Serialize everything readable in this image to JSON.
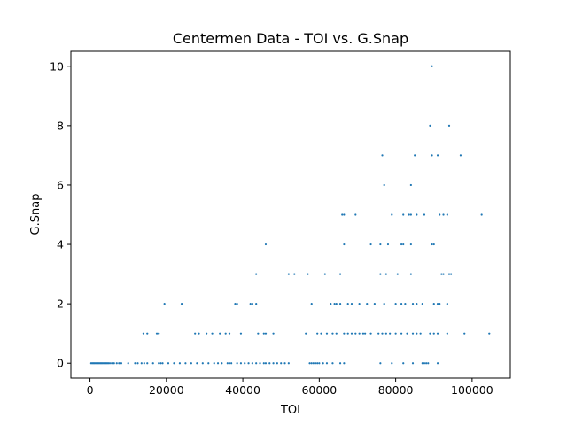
{
  "chart_data": {
    "type": "scatter",
    "title": "Centermen Data - TOI vs. G.Snap",
    "xlabel": "TOI",
    "ylabel": "G.Snap",
    "xlim": [
      -5000,
      110000
    ],
    "ylim": [
      -0.5,
      10.5
    ],
    "xticks": [
      0,
      20000,
      40000,
      60000,
      80000,
      100000
    ],
    "yticks": [
      0,
      2,
      4,
      6,
      8,
      10
    ],
    "grid": false,
    "legend": "none",
    "series": [
      {
        "color": "#1f77b4",
        "points": [
          [
            300,
            0
          ],
          [
            600,
            0
          ],
          [
            900,
            0
          ],
          [
            1200,
            0
          ],
          [
            1500,
            0
          ],
          [
            1800,
            0
          ],
          [
            2100,
            0
          ],
          [
            2400,
            0
          ],
          [
            2700,
            0
          ],
          [
            3000,
            0
          ],
          [
            3300,
            0
          ],
          [
            3600,
            0
          ],
          [
            3900,
            0
          ],
          [
            4200,
            0
          ],
          [
            4500,
            0
          ],
          [
            4800,
            0
          ],
          [
            5200,
            0
          ],
          [
            5700,
            0
          ],
          [
            6300,
            0
          ],
          [
            7000,
            0
          ],
          [
            7600,
            0
          ],
          [
            8200,
            0
          ],
          [
            10000,
            0
          ],
          [
            11800,
            0
          ],
          [
            12500,
            0
          ],
          [
            13500,
            0
          ],
          [
            14200,
            0
          ],
          [
            15000,
            0
          ],
          [
            16500,
            0
          ],
          [
            18000,
            0
          ],
          [
            18500,
            0
          ],
          [
            19000,
            0
          ],
          [
            20500,
            0
          ],
          [
            22000,
            0
          ],
          [
            23500,
            0
          ],
          [
            25000,
            0
          ],
          [
            26500,
            0
          ],
          [
            28000,
            0
          ],
          [
            29500,
            0
          ],
          [
            31000,
            0
          ],
          [
            32500,
            0
          ],
          [
            33500,
            0
          ],
          [
            34500,
            0
          ],
          [
            36000,
            0
          ],
          [
            36500,
            0
          ],
          [
            37000,
            0
          ],
          [
            38500,
            0
          ],
          [
            39500,
            0
          ],
          [
            40500,
            0
          ],
          [
            41500,
            0
          ],
          [
            42500,
            0
          ],
          [
            43500,
            0
          ],
          [
            44500,
            0
          ],
          [
            45500,
            0
          ],
          [
            46000,
            0
          ],
          [
            47000,
            0
          ],
          [
            48000,
            0
          ],
          [
            49000,
            0
          ],
          [
            50000,
            0
          ],
          [
            51000,
            0
          ],
          [
            52000,
            0
          ],
          [
            57500,
            0
          ],
          [
            58000,
            0
          ],
          [
            58500,
            0
          ],
          [
            59000,
            0
          ],
          [
            59500,
            0
          ],
          [
            60000,
            0
          ],
          [
            61000,
            0
          ],
          [
            62000,
            0
          ],
          [
            63500,
            0
          ],
          [
            65500,
            0
          ],
          [
            66500,
            0
          ],
          [
            76000,
            0
          ],
          [
            79000,
            0
          ],
          [
            82000,
            0
          ],
          [
            84500,
            0
          ],
          [
            87000,
            0
          ],
          [
            87500,
            0
          ],
          [
            88000,
            0
          ],
          [
            88500,
            0
          ],
          [
            91000,
            0
          ],
          [
            14000,
            1
          ],
          [
            15000,
            1
          ],
          [
            17500,
            1
          ],
          [
            18000,
            1
          ],
          [
            27500,
            1
          ],
          [
            28500,
            1
          ],
          [
            30500,
            1
          ],
          [
            32000,
            1
          ],
          [
            34000,
            1
          ],
          [
            35500,
            1
          ],
          [
            36500,
            1
          ],
          [
            39500,
            1
          ],
          [
            44000,
            1
          ],
          [
            45500,
            1
          ],
          [
            46000,
            1
          ],
          [
            48000,
            1
          ],
          [
            56500,
            1
          ],
          [
            59500,
            1
          ],
          [
            60500,
            1
          ],
          [
            62000,
            1
          ],
          [
            63500,
            1
          ],
          [
            64500,
            1
          ],
          [
            66500,
            1
          ],
          [
            67500,
            1
          ],
          [
            68500,
            1
          ],
          [
            69500,
            1
          ],
          [
            70500,
            1
          ],
          [
            71500,
            1
          ],
          [
            72000,
            1
          ],
          [
            73500,
            1
          ],
          [
            75500,
            1
          ],
          [
            76500,
            1
          ],
          [
            77500,
            1
          ],
          [
            78500,
            1
          ],
          [
            80000,
            1
          ],
          [
            81500,
            1
          ],
          [
            83000,
            1
          ],
          [
            84500,
            1
          ],
          [
            85500,
            1
          ],
          [
            86500,
            1
          ],
          [
            89000,
            1
          ],
          [
            90000,
            1
          ],
          [
            91000,
            1
          ],
          [
            93500,
            1
          ],
          [
            98000,
            1
          ],
          [
            104500,
            1
          ],
          [
            19500,
            2
          ],
          [
            24000,
            2
          ],
          [
            38000,
            2
          ],
          [
            38500,
            2
          ],
          [
            42000,
            2
          ],
          [
            42500,
            2
          ],
          [
            43500,
            2
          ],
          [
            58000,
            2
          ],
          [
            63000,
            2
          ],
          [
            64000,
            2
          ],
          [
            64500,
            2
          ],
          [
            65500,
            2
          ],
          [
            67500,
            2
          ],
          [
            68500,
            2
          ],
          [
            70500,
            2
          ],
          [
            72500,
            2
          ],
          [
            74500,
            2
          ],
          [
            77000,
            2
          ],
          [
            80000,
            2
          ],
          [
            81500,
            2
          ],
          [
            82500,
            2
          ],
          [
            84500,
            2
          ],
          [
            85500,
            2
          ],
          [
            87000,
            2
          ],
          [
            90000,
            2
          ],
          [
            91000,
            2
          ],
          [
            91500,
            2
          ],
          [
            93500,
            2
          ],
          [
            43500,
            3
          ],
          [
            52000,
            3
          ],
          [
            53500,
            3
          ],
          [
            57000,
            3
          ],
          [
            61500,
            3
          ],
          [
            65500,
            3
          ],
          [
            76000,
            3
          ],
          [
            77500,
            3
          ],
          [
            80500,
            3
          ],
          [
            84000,
            3
          ],
          [
            92000,
            3
          ],
          [
            92500,
            3
          ],
          [
            94000,
            3
          ],
          [
            94500,
            3
          ],
          [
            46000,
            4
          ],
          [
            66500,
            4
          ],
          [
            73500,
            4
          ],
          [
            76000,
            4
          ],
          [
            78000,
            4
          ],
          [
            81500,
            4
          ],
          [
            82000,
            4
          ],
          [
            84000,
            4
          ],
          [
            89500,
            4
          ],
          [
            90000,
            4
          ],
          [
            66000,
            5
          ],
          [
            66500,
            5
          ],
          [
            69500,
            5
          ],
          [
            79000,
            5
          ],
          [
            82000,
            5
          ],
          [
            83500,
            5
          ],
          [
            84000,
            5
          ],
          [
            85500,
            5
          ],
          [
            87500,
            5
          ],
          [
            91500,
            5
          ],
          [
            92500,
            5
          ],
          [
            93500,
            5
          ],
          [
            102500,
            5
          ],
          [
            77000,
            6
          ],
          [
            84000,
            6
          ],
          [
            76500,
            7
          ],
          [
            85000,
            7
          ],
          [
            89500,
            7
          ],
          [
            91000,
            7
          ],
          [
            97000,
            7
          ],
          [
            89000,
            8
          ],
          [
            94000,
            8
          ],
          [
            89500,
            10
          ]
        ]
      }
    ]
  }
}
